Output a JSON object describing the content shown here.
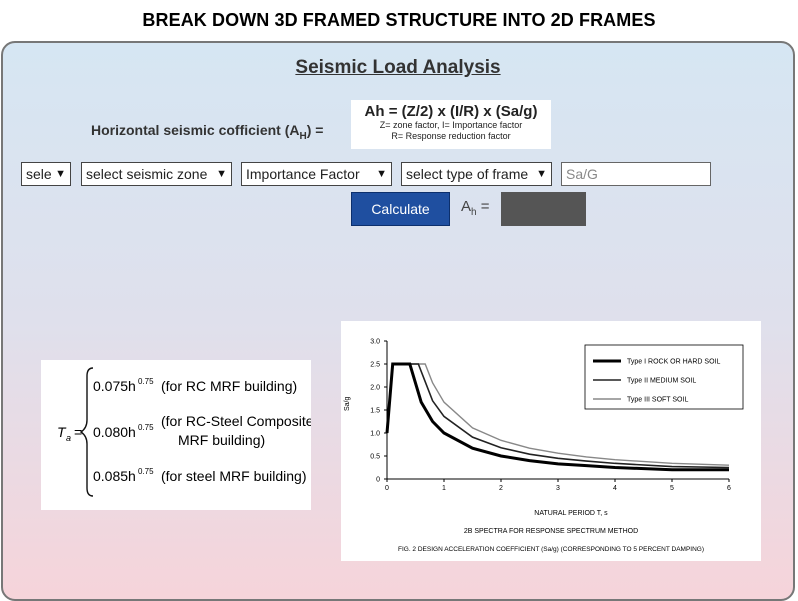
{
  "header": {
    "title": "BREAK DOWN 3D FRAMED STRUCTURE INTO 2D FRAMES"
  },
  "section": {
    "title": "Seismic Load Analysis"
  },
  "formula": {
    "label": "Horizontal seismic cofficient (A",
    "label_sub": "H",
    "label_tail": ") =",
    "equation": "Ah = (Z/2) x (I/R) x (Sa/g)",
    "note1": "Z= zone factor, I= Importance factor",
    "note2": "R= Response reduction factor"
  },
  "controls": {
    "select1": "selec",
    "select2": "select seismic zone",
    "select3": "Importance Factor",
    "select4": "select type of frame",
    "sag_placeholder": "Sa/G",
    "calculate": "Calculate",
    "result_label": "A",
    "result_sub": "h",
    "result_eq": " ="
  },
  "period_formula": {
    "ta": "T",
    "ta_sub": "a",
    "eq": "=",
    "rows": [
      {
        "coef": "0.075h",
        "exp": "0.75",
        "desc": "(for RC MRF building)"
      },
      {
        "coef": "0.080h",
        "exp": "0.75",
        "desc1": "(for RC-Steel Composite",
        "desc2": "MRF building)"
      },
      {
        "coef": "0.085h",
        "exp": "0.75",
        "desc": "(for steel MRF building)"
      }
    ]
  },
  "chart_data": {
    "type": "line",
    "xlabel": "NATURAL PERIOD T, s",
    "ylabel": "Sa/g",
    "xlim": [
      0,
      6
    ],
    "ylim": [
      0,
      3
    ],
    "x_ticks": [
      "0",
      "1",
      "2",
      "3",
      "4",
      "5",
      "6"
    ],
    "y_ticks": [
      "0",
      "0.5",
      "1.0",
      "1.5",
      "2.0",
      "2.5",
      "3.0"
    ],
    "caption1": "2B SPECTRA FOR RESPONSE SPECTRUM METHOD",
    "caption2": "FIG. 2 DESIGN ACCELERATION COEFFICIENT (Sa/g) (CORRESPONDING TO 5 PERCENT DAMPING)",
    "legend_position": "top-right",
    "series": [
      {
        "name": "Type I  ROCK OR HARD SOIL",
        "color": "#000000",
        "width": 3,
        "x": [
          0,
          0.1,
          0.4,
          0.6,
          0.8,
          1.0,
          1.5,
          2.0,
          2.5,
          3.0,
          3.5,
          4.0,
          5.0,
          6.0
        ],
        "y": [
          1.0,
          2.5,
          2.5,
          1.67,
          1.25,
          1.0,
          0.67,
          0.5,
          0.4,
          0.33,
          0.29,
          0.25,
          0.2,
          0.2
        ]
      },
      {
        "name": "Type II  MEDIUM SOIL",
        "color": "#222222",
        "width": 1.6,
        "x": [
          0,
          0.1,
          0.55,
          0.8,
          1.0,
          1.5,
          2.0,
          2.5,
          3.0,
          3.5,
          4.0,
          5.0,
          6.0
        ],
        "y": [
          1.0,
          2.5,
          2.5,
          1.7,
          1.36,
          0.91,
          0.68,
          0.54,
          0.45,
          0.39,
          0.34,
          0.27,
          0.25
        ]
      },
      {
        "name": "Type III  SOFT SOIL",
        "color": "#888888",
        "width": 1.4,
        "x": [
          0,
          0.1,
          0.67,
          0.8,
          1.0,
          1.5,
          2.0,
          2.5,
          3.0,
          3.5,
          4.0,
          5.0,
          6.0
        ],
        "y": [
          1.0,
          2.5,
          2.5,
          2.09,
          1.67,
          1.11,
          0.84,
          0.67,
          0.56,
          0.48,
          0.42,
          0.34,
          0.3
        ]
      }
    ]
  }
}
